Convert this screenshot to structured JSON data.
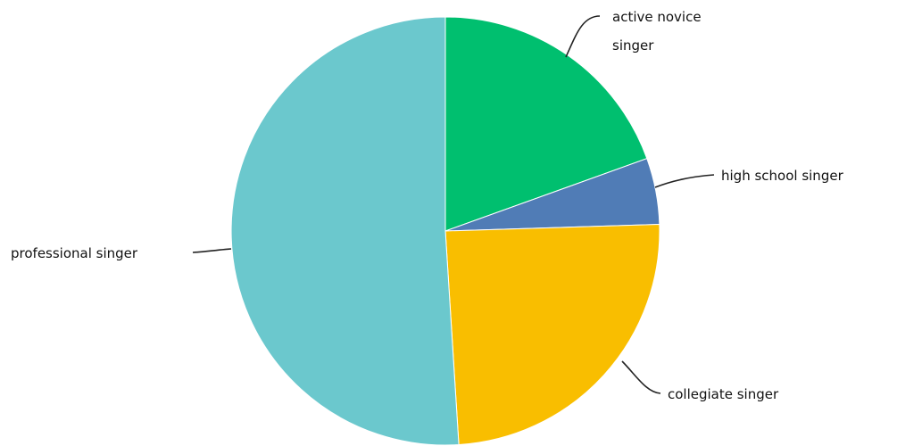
{
  "chart_data": {
    "type": "pie",
    "title": "",
    "legend": "none",
    "slices": [
      {
        "label": "active novice singer",
        "value": 19.5,
        "color": "#00bf6f"
      },
      {
        "label": "high school singer",
        "value": 5,
        "color": "#507cb6"
      },
      {
        "label": "collegiate singer",
        "value": 24.5,
        "color": "#f9be00"
      },
      {
        "label": "professional singer",
        "value": 51,
        "color": "#6bc8cd"
      }
    ]
  }
}
